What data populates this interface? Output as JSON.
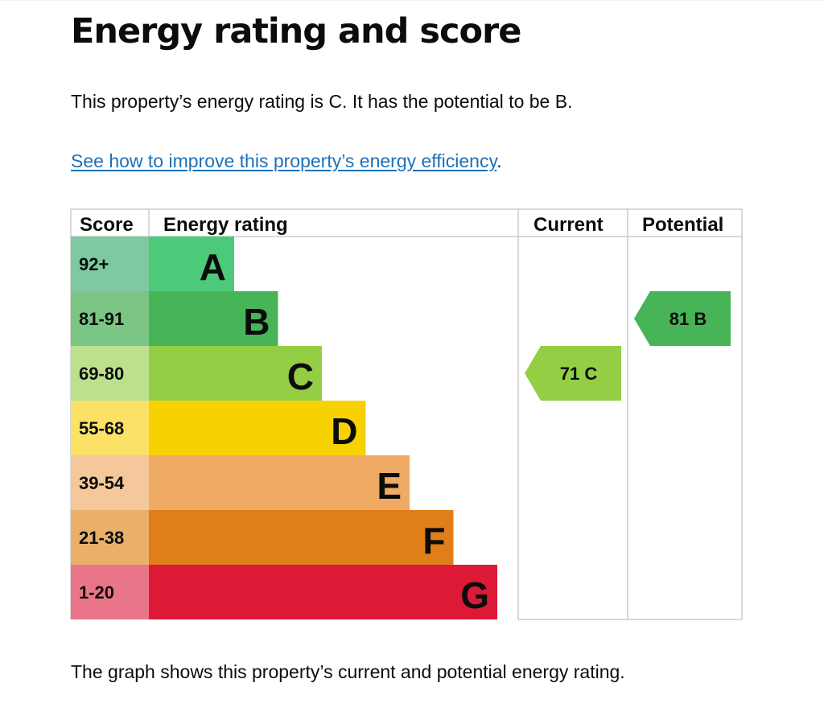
{
  "page": {
    "title": "Energy rating and score",
    "summary": "This property’s energy rating is C. It has the potential to be B.",
    "link_text": "See how to improve this property’s energy efficiency",
    "link_suffix": ".",
    "caption": "The graph shows this property’s current and potential energy rating."
  },
  "chart_data": {
    "type": "bar",
    "headers": [
      "Score",
      "Energy rating",
      "Current",
      "Potential"
    ],
    "bands": [
      {
        "letter": "A",
        "score": "92+",
        "color": "#4dc97a",
        "score_color": "#7ec9a1"
      },
      {
        "letter": "B",
        "score": "81-91",
        "color": "#47b557",
        "score_color": "#7cc685"
      },
      {
        "letter": "C",
        "score": "69-80",
        "color": "#93ce44",
        "score_color": "#bde08f"
      },
      {
        "letter": "D",
        "score": "55-68",
        "color": "#f8d200",
        "score_color": "#fbe266"
      },
      {
        "letter": "E",
        "score": "39-54",
        "color": "#efaa64",
        "score_color": "#f4c89a"
      },
      {
        "letter": "F",
        "score": "21-38",
        "color": "#e07e18",
        "score_color": "#eab06a"
      },
      {
        "letter": "G",
        "score": "1-20",
        "color": "#dc1a36",
        "score_color": "#e87688"
      }
    ],
    "current": {
      "score": 71,
      "band": "C",
      "label": "71  C"
    },
    "potential": {
      "score": 81,
      "band": "B",
      "label": "81  B"
    }
  }
}
